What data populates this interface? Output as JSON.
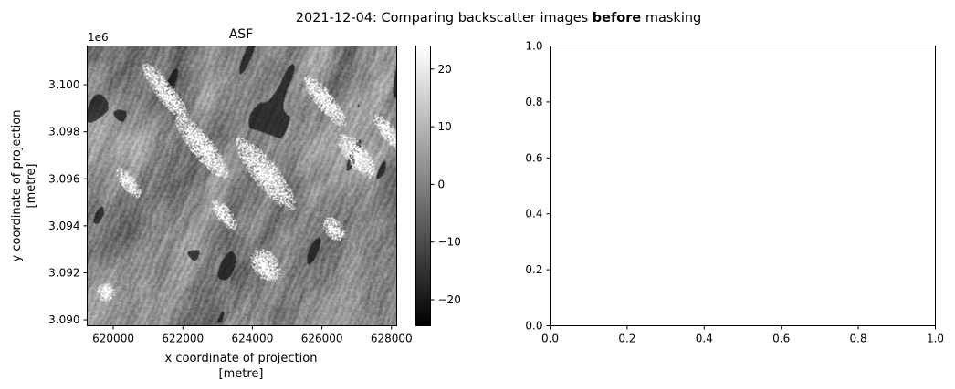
{
  "figure": {
    "suptitle_prefix": "2021-12-04: Comparing backscatter images ",
    "suptitle_bold": "before",
    "suptitle_suffix": " masking"
  },
  "chart_data": [
    {
      "type": "heatmap",
      "title": "ASF",
      "xlabel_line1": "x coordinate of projection",
      "xlabel_line2": "[metre]",
      "ylabel_line1": "y coordinate of projection",
      "ylabel_line2": "[metre]",
      "y_offset_label": "1e6",
      "xlim": [
        619250,
        628150
      ],
      "ylim": [
        3.08975,
        3.10165
      ],
      "xticks": [
        620000,
        622000,
        624000,
        626000,
        628000
      ],
      "xtick_labels": [
        "620000",
        "622000",
        "624000",
        "626000",
        "628000"
      ],
      "yticks": [
        3.09,
        3.092,
        3.094,
        3.096,
        3.098,
        3.1
      ],
      "ytick_labels": [
        "3.090",
        "3.092",
        "3.094",
        "3.096",
        "3.098",
        "3.100"
      ],
      "colormap": "gray",
      "colorbar": {
        "vmin": -24.5,
        "vmax": 24,
        "ticks": [
          -20,
          -10,
          0,
          10,
          20
        ],
        "tick_labels": [
          "−20",
          "−10",
          "0",
          "10",
          "20"
        ]
      },
      "masked_color": "#ffffff",
      "description": "SAR backscatter image with diagonal NW-SE streaks and white no-data patches"
    },
    {
      "type": "empty",
      "xlim": [
        0,
        1
      ],
      "ylim": [
        0,
        1
      ],
      "xticks": [
        0.0,
        0.2,
        0.4,
        0.6,
        0.8,
        1.0
      ],
      "xtick_labels": [
        "0.0",
        "0.2",
        "0.4",
        "0.6",
        "0.8",
        "1.0"
      ],
      "yticks": [
        0.0,
        0.2,
        0.4,
        0.6,
        0.8,
        1.0
      ],
      "ytick_labels": [
        "0.0",
        "0.2",
        "0.4",
        "0.6",
        "0.8",
        "1.0"
      ]
    }
  ]
}
